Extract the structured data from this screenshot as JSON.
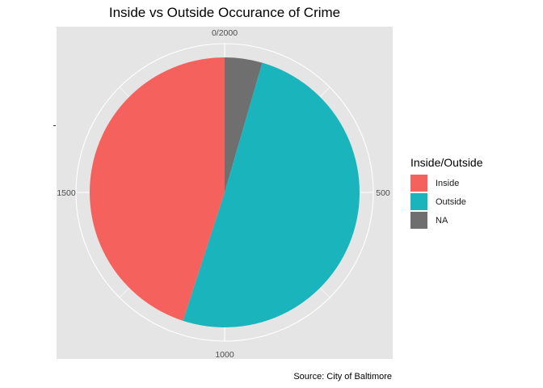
{
  "chart_data": {
    "type": "pie",
    "title": "Inside vs Outside Occurance of Crime",
    "caption": "Source: City of Baltimore",
    "legend_title": "Inside/Outside",
    "legend_position": "right",
    "theta_ticks": [
      {
        "value": 0,
        "label": "0/2000"
      },
      {
        "value": 500,
        "label": "500"
      },
      {
        "value": 1000,
        "label": "1000"
      },
      {
        "value": 1500,
        "label": "1500"
      }
    ],
    "total": 2000,
    "slices": [
      {
        "label": "NA",
        "value": 90,
        "color": "#6f6f6f"
      },
      {
        "label": "Outside",
        "value": 1010,
        "color": "#1ab5bc"
      },
      {
        "label": "Inside",
        "value": 900,
        "color": "#f5625d"
      }
    ],
    "legend": [
      {
        "label": "Inside",
        "color": "#f5625d"
      },
      {
        "label": "Outside",
        "color": "#1ab5bc"
      },
      {
        "label": "NA",
        "color": "#6f6f6f"
      }
    ],
    "panel_background": "#e5e5e5",
    "grid_color": "#ffffff"
  }
}
